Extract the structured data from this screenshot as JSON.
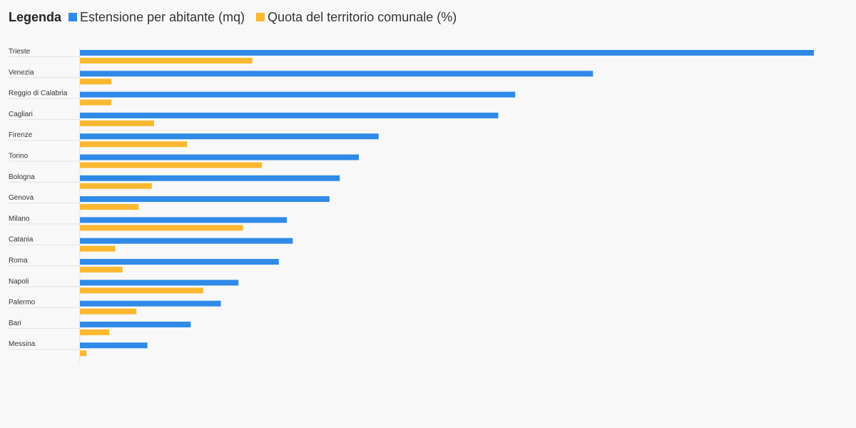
{
  "legend": {
    "title": "Legenda",
    "items": [
      {
        "label": "Estensione per abitante (mq)",
        "color": "#2f8ae8"
      },
      {
        "label": "Quota del territorio comunale (%)",
        "color": "#fbb830"
      }
    ]
  },
  "chart_data": {
    "type": "bar",
    "orientation": "horizontal",
    "categories": [
      "Trieste",
      "Venezia",
      "Reggio di Calabria",
      "Cagliari",
      "Firenze",
      "Torino",
      "Bologna",
      "Genova",
      "Milano",
      "Catania",
      "Roma",
      "Napoli",
      "Palermo",
      "Bari",
      "Messina"
    ],
    "series": [
      {
        "name": "Estensione per abitante (mq)",
        "color": "#2f8ae8",
        "values": [
          100,
          69.9,
          59.3,
          57.0,
          40.7,
          38.0,
          35.4,
          34.0,
          28.2,
          29.0,
          27.1,
          21.6,
          19.2,
          15.1,
          9.2
        ]
      },
      {
        "name": "Quota del territorio comunale (%)",
        "color": "#fbb830",
        "values": [
          23.5,
          4.3,
          4.3,
          10.1,
          14.6,
          24.8,
          9.8,
          8.0,
          22.2,
          4.8,
          5.8,
          16.8,
          7.7,
          4.0,
          0.9
        ]
      }
    ],
    "xlim": [
      0,
      100
    ],
    "grid": false,
    "legend_position": "top-left"
  }
}
